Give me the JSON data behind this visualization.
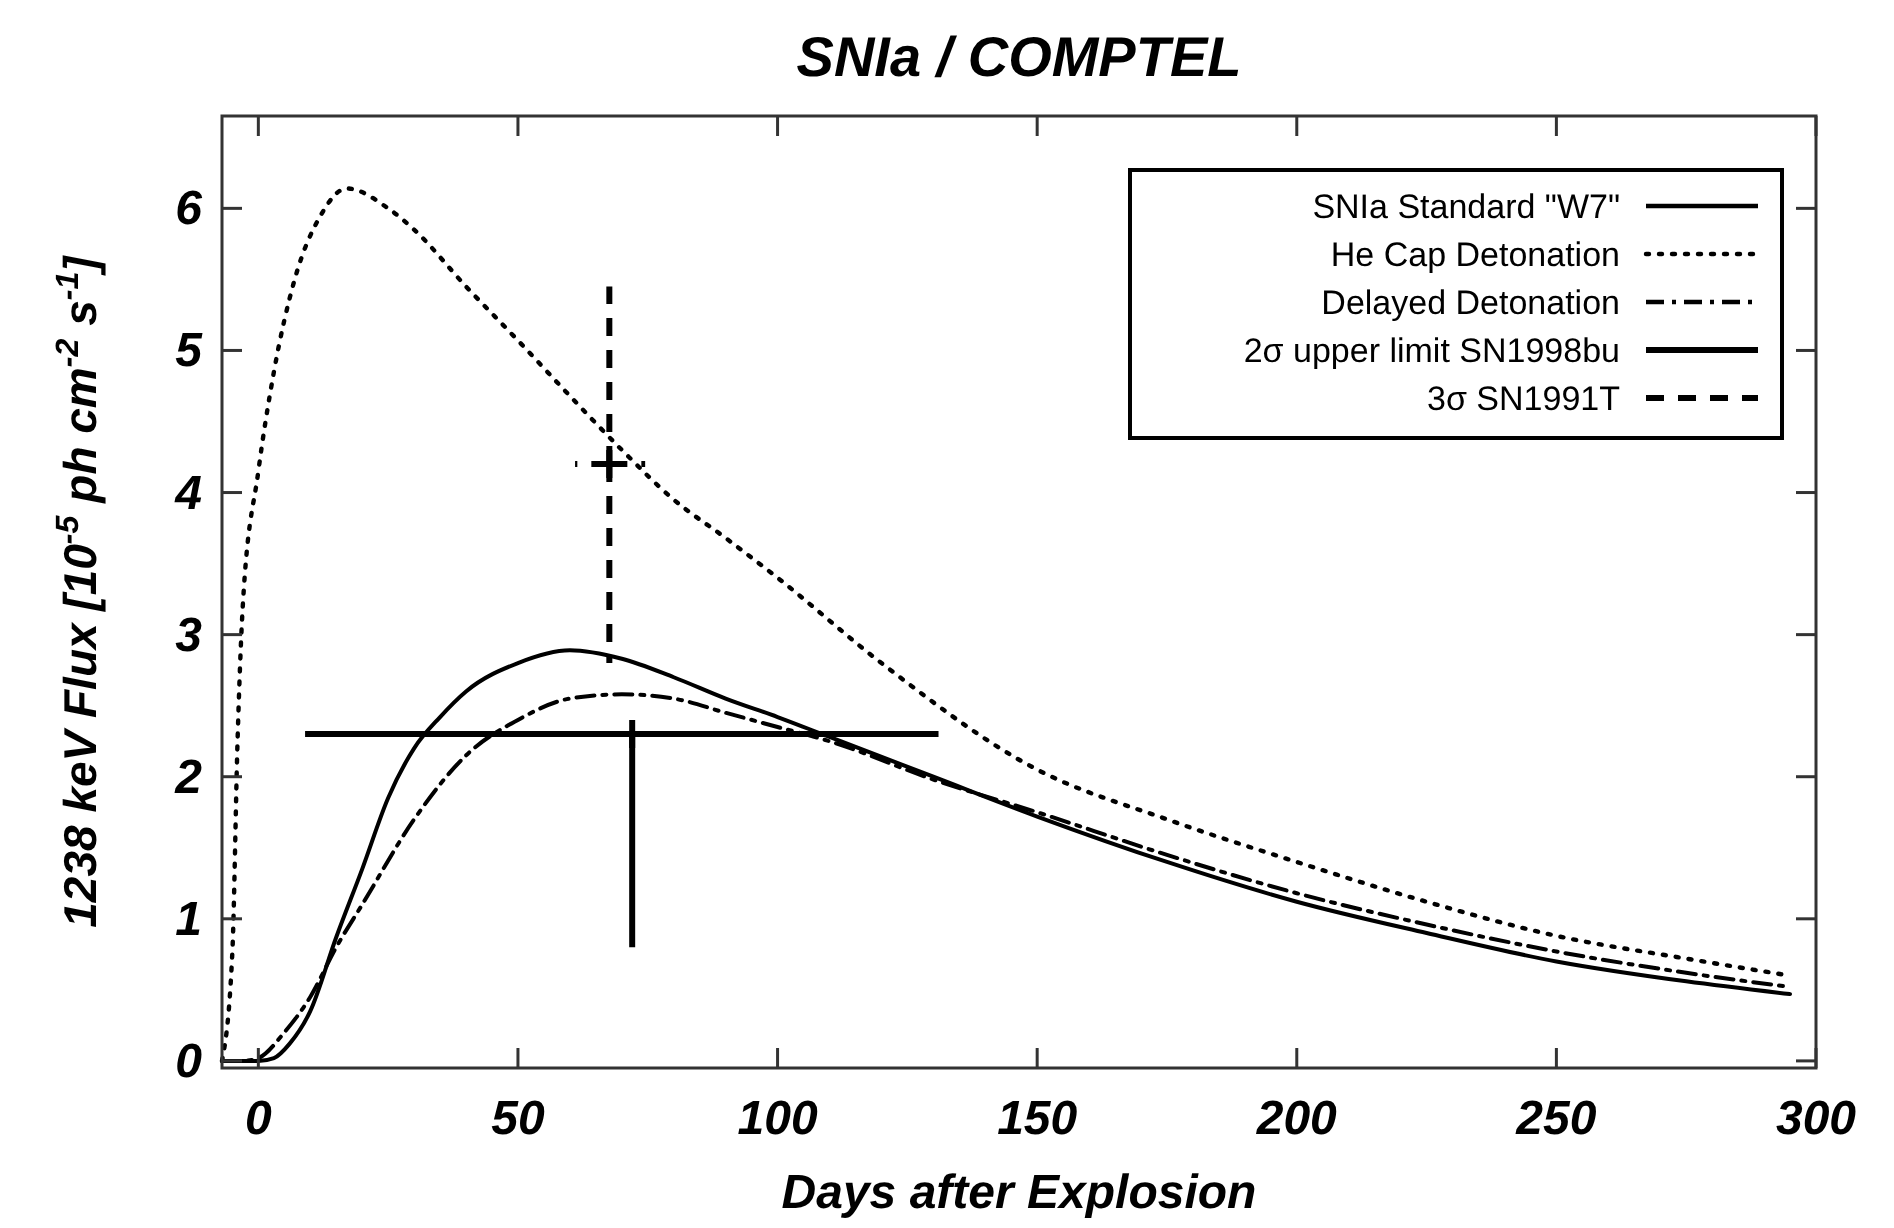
{
  "chart_data": {
    "type": "line",
    "title": "SNIa / COMPTEL",
    "xlabel": "Days after Explosion",
    "ylabel": "1238 keV Flux [10$^{-5}$ ph cm$^{-2}$ s$^{-1}$]",
    "xlim": [
      -7,
      300
    ],
    "ylim": [
      -0.05,
      6.65
    ],
    "xticks": [
      0,
      50,
      100,
      150,
      200,
      250,
      300
    ],
    "yticks": [
      0,
      1,
      2,
      3,
      4,
      5,
      6
    ],
    "grid": false,
    "legend": "top right",
    "marker": "none",
    "series": [
      {
        "name": "SNIa Standard \"W7\"",
        "color": "#000000",
        "line_style": "solid",
        "x": [
          -7,
          0,
          3,
          6,
          10,
          15,
          20,
          25,
          30,
          35,
          40,
          50,
          60,
          70,
          80,
          90,
          100,
          110,
          130,
          150,
          175,
          200,
          225,
          250,
          275,
          295
        ],
        "values": [
          0,
          0,
          0.02,
          0.12,
          0.35,
          0.87,
          1.35,
          1.85,
          2.2,
          2.42,
          2.6,
          2.8,
          2.89,
          2.83,
          2.7,
          2.55,
          2.42,
          2.28,
          2.0,
          1.72,
          1.4,
          1.12,
          0.9,
          0.7,
          0.56,
          0.47
        ]
      },
      {
        "name": "He Cap Detonation",
        "color": "#000000",
        "line_style": "dotted",
        "x": [
          -7,
          -5,
          -4,
          -3,
          0,
          3,
          7,
          12,
          17,
          25,
          30,
          40,
          50,
          60,
          70,
          80,
          90,
          100,
          120,
          150,
          175,
          200,
          225,
          250,
          275,
          295
        ],
        "values": [
          0,
          0.77,
          2.26,
          3.2,
          4.15,
          4.85,
          5.5,
          5.95,
          6.14,
          6.0,
          5.85,
          5.45,
          5.07,
          4.68,
          4.3,
          3.95,
          3.68,
          3.4,
          2.8,
          2.05,
          1.7,
          1.4,
          1.12,
          0.88,
          0.72,
          0.6
        ]
      },
      {
        "name": "Delayed Detonation",
        "color": "#000000",
        "line_style": "dashdot",
        "x": [
          -7,
          -3,
          0,
          5,
          10,
          15,
          20,
          30,
          40,
          50,
          60,
          70,
          80,
          90,
          100,
          110,
          130,
          150,
          175,
          200,
          225,
          250,
          275,
          295
        ],
        "values": [
          0,
          0,
          0.02,
          0.2,
          0.45,
          0.8,
          1.1,
          1.7,
          2.15,
          2.4,
          2.55,
          2.58,
          2.55,
          2.45,
          2.35,
          2.25,
          1.98,
          1.75,
          1.45,
          1.18,
          0.96,
          0.77,
          0.62,
          0.52
        ]
      },
      {
        "name": "2σ upper limit SN1998bu",
        "color": "#000000",
        "type": "scatter",
        "marker": "cross",
        "line_style": "solid",
        "x": [
          72
        ],
        "values": [
          2.3
        ],
        "errors": [
          [
            0.8,
            2.3
          ]
        ],
        "xerrors": [
          [
            9,
            131
          ]
        ]
      },
      {
        "name": "3σ SN1991T",
        "color": "#000000",
        "type": "scatter",
        "marker": "cross",
        "line_style": "dashed",
        "x": [
          67.6
        ],
        "values": [
          4.2
        ],
        "errors": [
          [
            2.8,
            5.45
          ]
        ],
        "xerrors": [
          [
            61,
            74.5
          ]
        ]
      }
    ]
  }
}
